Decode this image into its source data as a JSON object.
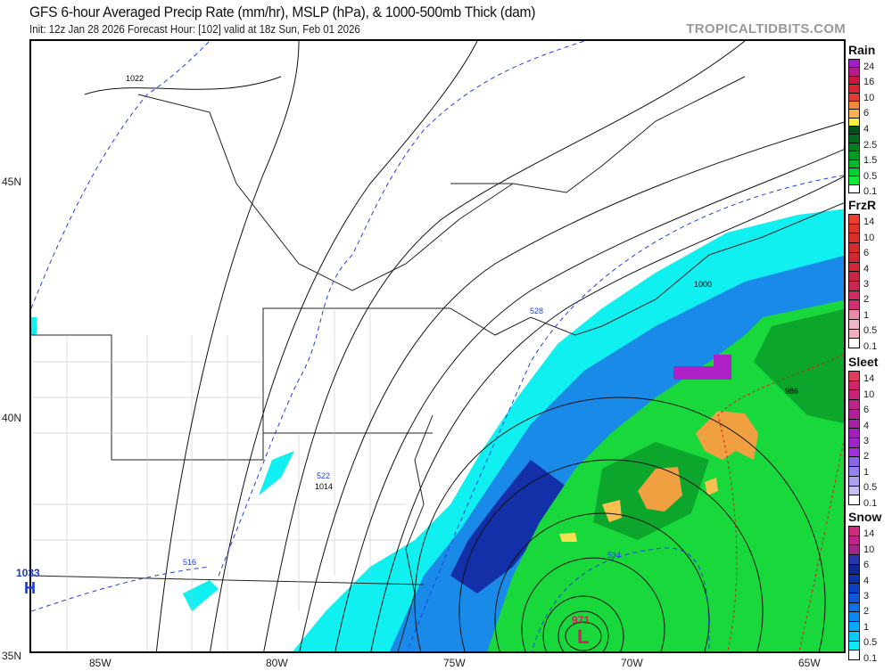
{
  "header": {
    "title": "GFS 6-hour Averaged Precip Rate (mm/hr), MSLP (hPa), & 1000-500mb Thick (dam)",
    "subtitle": "Init: 12z Jan 28 2026   Forecast Hour: [102]   valid at 18z Sun, Feb 01 2026",
    "brand": "TROPICALTIDBITS.COM"
  },
  "map": {
    "lat_labels": [
      "45N",
      "40N",
      "35N"
    ],
    "lon_labels": [
      "85W",
      "80W",
      "75W",
      "70W",
      "65W"
    ],
    "isobar_labels": [
      "1022",
      "1014",
      "1000",
      "986"
    ],
    "thickness_labels": [
      "528",
      "522",
      "516",
      "534"
    ],
    "high": {
      "value": "1033",
      "symbol": "H",
      "color": "#1a3ad0"
    },
    "low": {
      "value": "971",
      "symbol": "L",
      "color": "#d0205a"
    },
    "colors": {
      "snow_light": "#10f0f0",
      "snow_mid": "#1a7ae0",
      "snow_heavy": "#1430a8",
      "rain_green": "#18d83c",
      "rain_dark": "#0a9a28",
      "rain_orange": "#f0a040",
      "rain_yellow": "#f8e050",
      "sleet_purple": "#b020c8",
      "thickness_line": "#2040e0",
      "freeze_line": "#d02020"
    }
  },
  "legends": [
    {
      "title": "Rain",
      "labels": [
        "24",
        "16",
        "10",
        "6",
        "4",
        "2.5",
        "1.5",
        "0.5",
        "0.1"
      ],
      "colors": [
        "#a21ec8",
        "#b41c8c",
        "#c8183c",
        "#d62830",
        "#e03c30",
        "#f08a38",
        "#f8b050",
        "#f8f040",
        "#00501a",
        "#006a1c",
        "#00801e",
        "#009a22",
        "#00b828",
        "#00d030",
        "#10e838",
        "#ffffff"
      ]
    },
    {
      "title": "FrzR",
      "labels": [
        "14",
        "10",
        "6",
        "4",
        "3",
        "2",
        "1",
        "0.5",
        "0.1"
      ],
      "colors": [
        "#e8402c",
        "#e03428",
        "#d83028",
        "#d42c2c",
        "#d02830",
        "#cc2838",
        "#c82444",
        "#c82850",
        "#cc2c60",
        "#d03070",
        "#e88aa8",
        "#f0b8c4",
        "#eeb0bc",
        "#ffffff"
      ]
    },
    {
      "title": "Sleet",
      "labels": [
        "14",
        "10",
        "6",
        "4",
        "3",
        "2",
        "1",
        "0.5",
        "0.1"
      ],
      "colors": [
        "#e03c5c",
        "#d42468",
        "#c82478",
        "#bc2488",
        "#b02098",
        "#a820a8",
        "#a020b8",
        "#a024c8",
        "#a030d8",
        "#8868e8",
        "#9880f0",
        "#b0a0f0",
        "#c8c0f0",
        "#ffffff"
      ]
    },
    {
      "title": "Snow",
      "labels": [
        "14",
        "10",
        "6",
        "4",
        "3",
        "2",
        "1",
        "0.5",
        "0.1"
      ],
      "colors": [
        "#d02c7c",
        "#c02488",
        "#a0288c",
        "#2838a8",
        "#0c2890",
        "#0c34a8",
        "#0840c0",
        "#0c58d8",
        "#0c70e8",
        "#0888f0",
        "#08a8f8",
        "#08c8f8",
        "#10e8f8",
        "#ffffff"
      ]
    }
  ]
}
